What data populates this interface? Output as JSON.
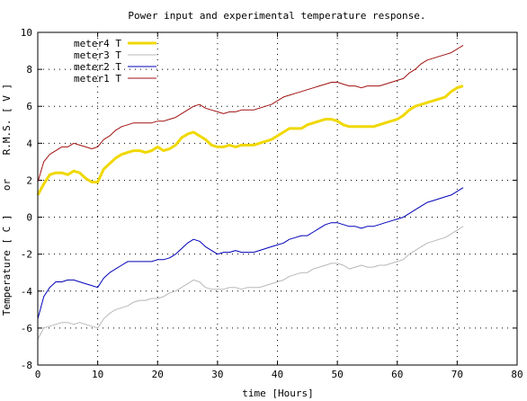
{
  "chart_data": {
    "type": "line",
    "title": "Power input and experimental temperature response.",
    "xlabel": "time [Hours]",
    "ylabel": "Temperature [ C ]    or    R.M.S. [ V ]",
    "xlim": [
      0,
      80
    ],
    "ylim": [
      -8,
      10
    ],
    "xticks": [
      0,
      10,
      20,
      30,
      40,
      50,
      60,
      70,
      80
    ],
    "yticks": [
      -8,
      -6,
      -4,
      -2,
      0,
      2,
      4,
      6,
      8,
      10
    ],
    "grid": true,
    "legend_position": "top-left",
    "series": [
      {
        "name": "meter4 T",
        "color": "#f0d800",
        "width": 3,
        "x": [
          0,
          1,
          2,
          3,
          4,
          5,
          6,
          7,
          8,
          9,
          10,
          11,
          12,
          13,
          14,
          15,
          16,
          17,
          18,
          19,
          20,
          21,
          22,
          23,
          24,
          25,
          26,
          27,
          28,
          29,
          30,
          31,
          32,
          33,
          34,
          35,
          36,
          37,
          38,
          39,
          40,
          41,
          42,
          43,
          44,
          45,
          46,
          47,
          48,
          49,
          50,
          51,
          52,
          53,
          54,
          55,
          56,
          57,
          58,
          59,
          60,
          61,
          62,
          63,
          64,
          65,
          66,
          67,
          68,
          69,
          70,
          71
        ],
        "y": [
          1.2,
          1.8,
          2.3,
          2.4,
          2.4,
          2.3,
          2.5,
          2.4,
          2.1,
          1.9,
          1.9,
          2.6,
          2.9,
          3.2,
          3.4,
          3.5,
          3.6,
          3.6,
          3.5,
          3.6,
          3.8,
          3.6,
          3.7,
          3.9,
          4.3,
          4.5,
          4.6,
          4.4,
          4.2,
          3.9,
          3.8,
          3.8,
          3.9,
          3.8,
          3.9,
          3.9,
          3.9,
          4.0,
          4.1,
          4.2,
          4.4,
          4.6,
          4.8,
          4.8,
          4.8,
          5.0,
          5.1,
          5.2,
          5.3,
          5.3,
          5.2,
          5.0,
          4.9,
          4.9,
          4.9,
          4.9,
          4.9,
          5.0,
          5.1,
          5.2,
          5.3,
          5.5,
          5.8,
          6.0,
          6.1,
          6.2,
          6.3,
          6.4,
          6.5,
          6.8,
          7.0,
          7.1
        ]
      },
      {
        "name": "meter3 T",
        "color": "#b8b8b8",
        "width": 1,
        "x": [
          0,
          1,
          2,
          3,
          4,
          5,
          6,
          7,
          8,
          9,
          10,
          11,
          12,
          13,
          14,
          15,
          16,
          17,
          18,
          19,
          20,
          21,
          22,
          23,
          24,
          25,
          26,
          27,
          28,
          29,
          30,
          31,
          32,
          33,
          34,
          35,
          36,
          37,
          38,
          39,
          40,
          41,
          42,
          43,
          44,
          45,
          46,
          47,
          48,
          49,
          50,
          51,
          52,
          53,
          54,
          55,
          56,
          57,
          58,
          59,
          60,
          61,
          62,
          63,
          64,
          65,
          66,
          67,
          68,
          69,
          70,
          71
        ],
        "y": [
          -6.6,
          -6.0,
          -5.9,
          -5.8,
          -5.7,
          -5.7,
          -5.8,
          -5.7,
          -5.8,
          -5.9,
          -6.0,
          -5.5,
          -5.2,
          -5.0,
          -4.9,
          -4.8,
          -4.6,
          -4.5,
          -4.5,
          -4.4,
          -4.4,
          -4.3,
          -4.1,
          -4.0,
          -3.8,
          -3.6,
          -3.4,
          -3.5,
          -3.8,
          -3.9,
          -3.9,
          -3.9,
          -3.8,
          -3.8,
          -3.9,
          -3.8,
          -3.8,
          -3.8,
          -3.7,
          -3.6,
          -3.5,
          -3.4,
          -3.2,
          -3.1,
          -3.0,
          -3.0,
          -2.8,
          -2.7,
          -2.6,
          -2.5,
          -2.5,
          -2.6,
          -2.8,
          -2.7,
          -2.6,
          -2.7,
          -2.7,
          -2.6,
          -2.6,
          -2.5,
          -2.4,
          -2.3,
          -2.0,
          -1.8,
          -1.6,
          -1.4,
          -1.3,
          -1.2,
          -1.1,
          -0.9,
          -0.7,
          -0.5
        ]
      },
      {
        "name": "meter2 T",
        "color": "#0000b8",
        "width": 1,
        "x": [
          0,
          1,
          2,
          3,
          4,
          5,
          6,
          7,
          8,
          9,
          10,
          11,
          12,
          13,
          14,
          15,
          16,
          17,
          18,
          19,
          20,
          21,
          22,
          23,
          24,
          25,
          26,
          27,
          28,
          29,
          30,
          31,
          32,
          33,
          34,
          35,
          36,
          37,
          38,
          39,
          40,
          41,
          42,
          43,
          44,
          45,
          46,
          47,
          48,
          49,
          50,
          51,
          52,
          53,
          54,
          55,
          56,
          57,
          58,
          59,
          60,
          61,
          62,
          63,
          64,
          65,
          66,
          67,
          68,
          69,
          70,
          71
        ],
        "y": [
          -5.5,
          -4.3,
          -3.8,
          -3.5,
          -3.5,
          -3.4,
          -3.4,
          -3.5,
          -3.6,
          -3.7,
          -3.8,
          -3.3,
          -3.0,
          -2.8,
          -2.6,
          -2.4,
          -2.4,
          -2.4,
          -2.4,
          -2.4,
          -2.3,
          -2.3,
          -2.2,
          -2.0,
          -1.7,
          -1.4,
          -1.2,
          -1.3,
          -1.6,
          -1.8,
          -2.0,
          -1.9,
          -1.9,
          -1.8,
          -1.9,
          -1.9,
          -1.9,
          -1.8,
          -1.7,
          -1.6,
          -1.5,
          -1.4,
          -1.2,
          -1.1,
          -1.0,
          -1.0,
          -0.8,
          -0.6,
          -0.4,
          -0.3,
          -0.3,
          -0.4,
          -0.5,
          -0.5,
          -0.6,
          -0.5,
          -0.5,
          -0.4,
          -0.3,
          -0.2,
          -0.1,
          0.0,
          0.2,
          0.4,
          0.6,
          0.8,
          0.9,
          1.0,
          1.1,
          1.2,
          1.4,
          1.6
        ]
      },
      {
        "name": "meter1 T",
        "color": "#a01010",
        "width": 1,
        "x": [
          0,
          1,
          2,
          3,
          4,
          5,
          6,
          7,
          8,
          9,
          10,
          11,
          12,
          13,
          14,
          15,
          16,
          17,
          18,
          19,
          20,
          21,
          22,
          23,
          24,
          25,
          26,
          27,
          28,
          29,
          30,
          31,
          32,
          33,
          34,
          35,
          36,
          37,
          38,
          39,
          40,
          41,
          42,
          43,
          44,
          45,
          46,
          47,
          48,
          49,
          50,
          51,
          52,
          53,
          54,
          55,
          56,
          57,
          58,
          59,
          60,
          61,
          62,
          63,
          64,
          65,
          66,
          67,
          68,
          69,
          70,
          71
        ],
        "y": [
          1.9,
          3.0,
          3.4,
          3.6,
          3.8,
          3.8,
          4.0,
          3.9,
          3.8,
          3.7,
          3.8,
          4.2,
          4.4,
          4.7,
          4.9,
          5.0,
          5.1,
          5.1,
          5.1,
          5.1,
          5.2,
          5.2,
          5.3,
          5.4,
          5.6,
          5.8,
          6.0,
          6.1,
          5.9,
          5.8,
          5.7,
          5.6,
          5.7,
          5.7,
          5.8,
          5.8,
          5.8,
          5.9,
          6.0,
          6.1,
          6.3,
          6.5,
          6.6,
          6.7,
          6.8,
          6.9,
          7.0,
          7.1,
          7.2,
          7.3,
          7.3,
          7.2,
          7.1,
          7.1,
          7.0,
          7.1,
          7.1,
          7.1,
          7.2,
          7.3,
          7.4,
          7.5,
          7.8,
          8.0,
          8.3,
          8.5,
          8.6,
          8.7,
          8.8,
          8.9,
          9.1,
          9.3
        ]
      }
    ]
  }
}
